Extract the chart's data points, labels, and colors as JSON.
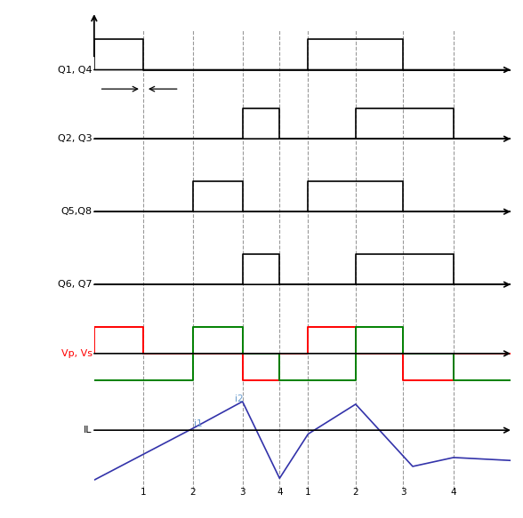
{
  "labels": {
    "Q1Q4": "Q1, Q4",
    "Q2Q3": "Q2, Q3",
    "Q5Q8": "Q5,Q8",
    "Q6Q7": "Q6, Q7",
    "VpVs": "Vp, Vs",
    "IL": "IL",
    "i1": "i1",
    "i2": "i2"
  },
  "colors": {
    "black": "#000000",
    "red": "#FF0000",
    "green": "#008000",
    "blue": "#3333AA",
    "light_blue": "#6699CC",
    "dashed": "#999999"
  },
  "x_tick_labels": [
    "1",
    "2",
    "3",
    "4",
    "1",
    "2",
    "3",
    "4"
  ]
}
